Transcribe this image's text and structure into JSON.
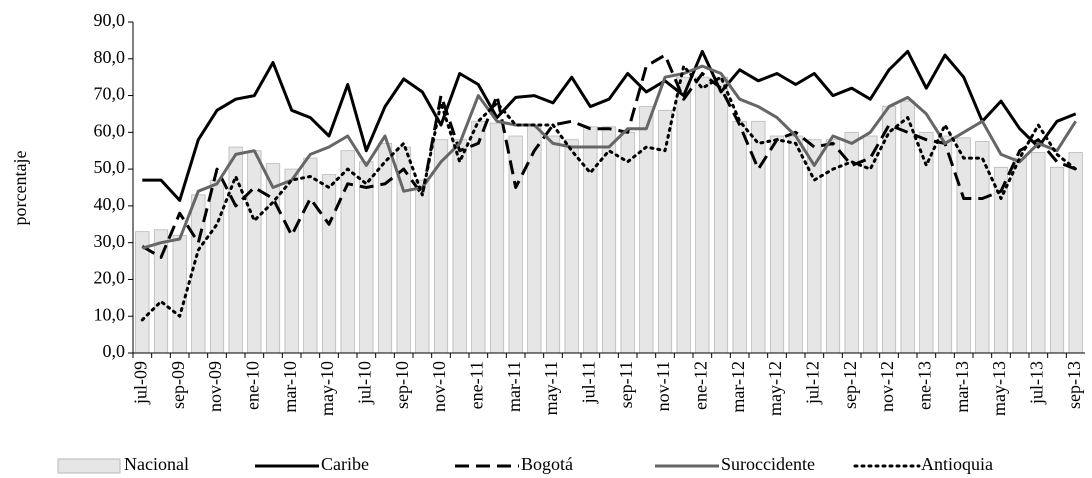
{
  "chart_data": {
    "type": "bar-line",
    "y_label": "porcentaje",
    "categories": [
      "jul-09",
      null,
      "sep-09",
      null,
      "nov-09",
      null,
      "ene-10",
      null,
      "mar-10",
      null,
      "may-10",
      null,
      "jul-10",
      null,
      "sep-10",
      null,
      "nov-10",
      null,
      "ene-11",
      null,
      "mar-11",
      null,
      "may-11",
      null,
      "jul-11",
      null,
      "sep-11",
      null,
      "nov-11",
      null,
      "ene-12",
      null,
      "mar-12",
      null,
      "may-12",
      null,
      "jul-12",
      null,
      "sep-12",
      null,
      "nov-12",
      null,
      "ene-13",
      null,
      "mar-13",
      null,
      "may-13",
      null,
      "jul-13",
      null,
      "sep-13"
    ],
    "ylim": [
      0,
      90
    ],
    "yticks": [
      {
        "value": 0,
        "label": "0,0"
      },
      {
        "value": 10,
        "label": "10,0"
      },
      {
        "value": 20,
        "label": "20,0"
      },
      {
        "value": 30,
        "label": "30,0"
      },
      {
        "value": 40,
        "label": "40,0"
      },
      {
        "value": 50,
        "label": "50,0"
      },
      {
        "value": 60,
        "label": "60,0"
      },
      {
        "value": 70,
        "label": "70,0"
      },
      {
        "value": 80,
        "label": "80,0"
      },
      {
        "value": 90,
        "label": "90,0"
      }
    ],
    "legend": "bottom",
    "series": [
      {
        "name": "Nacional",
        "kind": "bar",
        "color": "#e6e6e6",
        "values": [
          33,
          33.5,
          32,
          43,
          47,
          56,
          55,
          51.5,
          50,
          53,
          48.5,
          55,
          52,
          57,
          56,
          47,
          58,
          58,
          63,
          62.5,
          59,
          62,
          59,
          58,
          61.5,
          61.5,
          60,
          67,
          66,
          75,
          75,
          75,
          63,
          63,
          59,
          59,
          58,
          58,
          60,
          59,
          67,
          68.5,
          60,
          59,
          58.5,
          57.5,
          50.5,
          53,
          54.5,
          50.5,
          54.5
        ]
      },
      {
        "name": "Caribe",
        "kind": "line",
        "color": "#000000",
        "dash": "solid",
        "values": [
          47,
          47,
          41.5,
          58,
          66,
          69,
          70,
          79,
          66,
          64,
          59,
          73,
          55,
          67,
          74.5,
          71,
          62,
          76,
          73,
          64,
          69.5,
          70,
          68,
          75,
          67,
          69,
          76,
          71,
          74,
          70,
          82,
          71,
          77,
          74,
          76,
          73,
          76,
          70,
          72,
          69,
          77,
          82,
          72,
          81,
          75,
          63,
          68.5,
          61,
          56,
          63,
          65
        ]
      },
      {
        "name": "Bogotá",
        "kind": "line",
        "color": "#000000",
        "dash": "dashed",
        "values": [
          29,
          26,
          38,
          30,
          50,
          40,
          45,
          42,
          32,
          42,
          35,
          46,
          45,
          46,
          50,
          43,
          70,
          55,
          57,
          70,
          45,
          55,
          62,
          63,
          61,
          61,
          60,
          78,
          81,
          69,
          76,
          72,
          62,
          50,
          58,
          60,
          56,
          57,
          51,
          53,
          62,
          60,
          58,
          57,
          42,
          42,
          44,
          55,
          58,
          52,
          50
        ]
      },
      {
        "name": "Suroccidente",
        "kind": "line",
        "color": "#666666",
        "dash": "solid",
        "values": [
          28.5,
          30,
          31,
          44,
          46,
          54,
          55,
          45,
          47,
          54,
          56,
          59,
          51,
          59,
          44,
          45,
          52,
          57,
          70,
          63,
          62,
          62,
          57,
          56,
          56,
          56,
          61,
          61,
          75,
          76,
          78,
          76,
          69,
          67,
          64,
          59,
          51,
          59,
          57,
          60,
          67,
          69.5,
          65,
          57,
          60,
          63,
          54,
          52,
          57,
          55,
          63
        ]
      },
      {
        "name": "Antioquia",
        "kind": "line",
        "color": "#000000",
        "dash": "dotted",
        "values": [
          9,
          14,
          10,
          28,
          35,
          48,
          36,
          41,
          47,
          48,
          45,
          50,
          46,
          52,
          57,
          43,
          68,
          52,
          63,
          68,
          62,
          62,
          62,
          55,
          49,
          55,
          52,
          56,
          55,
          78,
          72,
          75,
          63,
          57,
          58,
          57,
          47,
          50,
          52,
          50,
          60,
          64,
          51,
          62,
          53,
          53,
          42,
          53,
          62,
          54,
          50
        ]
      }
    ]
  }
}
